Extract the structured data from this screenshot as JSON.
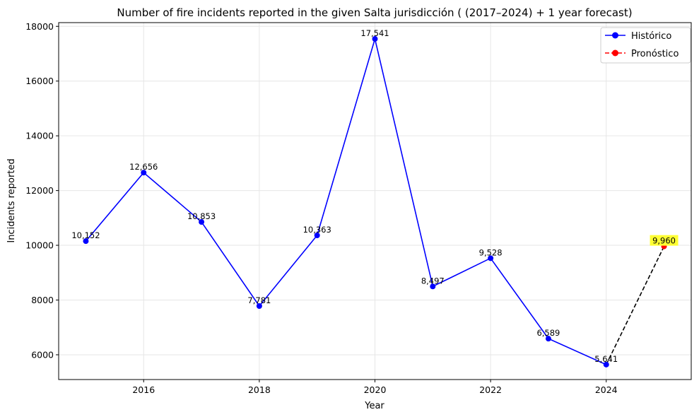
{
  "chart_data": {
    "type": "line",
    "title": "Number of fire incidents reported in the given Salta jurisdicción  ( (2017–2024)  + 1 year forecast)",
    "xlabel": "Year",
    "ylabel": "Incidents reported",
    "xlim": [
      2014.53,
      2025.47
    ],
    "ylim": [
      5095,
      18136
    ],
    "xticks": [
      2016,
      2018,
      2020,
      2022,
      2024
    ],
    "yticks": [
      6000,
      8000,
      10000,
      12000,
      14000,
      16000,
      18000
    ],
    "grid": true,
    "legend_position": "top-right",
    "series": [
      {
        "name": "Histórico",
        "color": "#0000ff",
        "line_style": "solid",
        "marker": "circle",
        "x": [
          2015,
          2016,
          2017,
          2018,
          2019,
          2020,
          2021,
          2022,
          2023,
          2024
        ],
        "y": [
          10152,
          12656,
          10853,
          7781,
          10363,
          17541,
          8497,
          9528,
          6589,
          5641
        ],
        "labels": [
          "10,152",
          "12,656",
          "10,853",
          "7,781",
          "10,363",
          "17,541",
          "8,497",
          "9,528",
          "6,589",
          "5,641"
        ]
      },
      {
        "name": "Pronóstico",
        "color": "#ff0000",
        "line_color": "#000000",
        "line_style": "dashed",
        "marker": "circle",
        "x": [
          2024,
          2025
        ],
        "y": [
          5641,
          9960
        ],
        "labels": [
          "",
          "9,960"
        ],
        "label_highlight": "#ffff33"
      }
    ]
  }
}
